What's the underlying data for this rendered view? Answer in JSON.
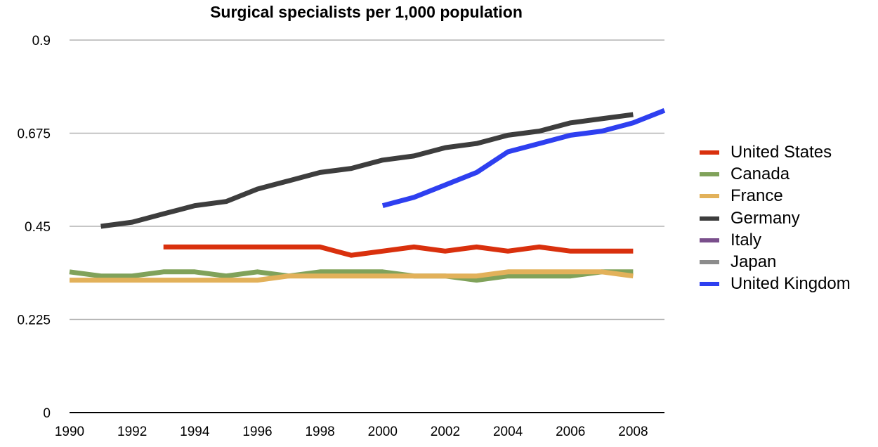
{
  "chart_data": {
    "type": "line",
    "title": "Surgical specialists per 1,000 population",
    "xlabel": "",
    "ylabel": "",
    "xlim": [
      1990,
      2009
    ],
    "ylim": [
      0,
      0.9
    ],
    "x_ticks": [
      "1990",
      "1992",
      "1994",
      "1996",
      "1998",
      "2000",
      "2002",
      "2004",
      "2006",
      "2008"
    ],
    "y_ticks": [
      "0",
      "0.225",
      "0.45",
      "0.675",
      "0.9"
    ],
    "grid": true,
    "legend_position": "right",
    "series": [
      {
        "name": "United States",
        "color": "#d9300d",
        "x": [
          1993,
          1994,
          1995,
          1996,
          1997,
          1998,
          1999,
          2000,
          2001,
          2002,
          2003,
          2004,
          2005,
          2006,
          2007,
          2008
        ],
        "y": [
          0.4,
          0.4,
          0.4,
          0.4,
          0.4,
          0.4,
          0.38,
          0.39,
          0.4,
          0.39,
          0.4,
          0.39,
          0.4,
          0.39,
          0.39,
          0.39
        ]
      },
      {
        "name": "Canada",
        "color": "#80a25a",
        "x": [
          1990,
          1991,
          1992,
          1993,
          1994,
          1995,
          1996,
          1997,
          1998,
          1999,
          2000,
          2001,
          2002,
          2003,
          2004,
          2005,
          2006,
          2007,
          2008
        ],
        "y": [
          0.34,
          0.33,
          0.33,
          0.34,
          0.34,
          0.33,
          0.34,
          0.33,
          0.34,
          0.34,
          0.34,
          0.33,
          0.33,
          0.32,
          0.33,
          0.33,
          0.33,
          0.34,
          0.34
        ]
      },
      {
        "name": "France",
        "color": "#e2b15a",
        "x": [
          1990,
          1991,
          1992,
          1993,
          1994,
          1995,
          1996,
          1997,
          1998,
          1999,
          2000,
          2001,
          2002,
          2003,
          2004,
          2005,
          2006,
          2007,
          2008
        ],
        "y": [
          0.32,
          0.32,
          0.32,
          0.32,
          0.32,
          0.32,
          0.32,
          0.33,
          0.33,
          0.33,
          0.33,
          0.33,
          0.33,
          0.33,
          0.34,
          0.34,
          0.34,
          0.34,
          0.33
        ]
      },
      {
        "name": "Germany",
        "color": "#3d3d3d",
        "x": [
          1991,
          1992,
          1993,
          1994,
          1995,
          1996,
          1997,
          1998,
          1999,
          2000,
          2001,
          2002,
          2003,
          2004,
          2005,
          2006,
          2007,
          2008
        ],
        "y": [
          0.45,
          0.46,
          0.48,
          0.5,
          0.51,
          0.54,
          0.56,
          0.58,
          0.59,
          0.61,
          0.62,
          0.64,
          0.65,
          0.67,
          0.68,
          0.7,
          0.71,
          0.72
        ]
      },
      {
        "name": "Italy",
        "color": "#7a4f8c",
        "x": [],
        "y": []
      },
      {
        "name": "Japan",
        "color": "#8c8c8c",
        "x": [],
        "y": []
      },
      {
        "name": "United Kingdom",
        "color": "#2e3ff0",
        "x": [
          2000,
          2001,
          2002,
          2003,
          2004,
          2005,
          2006,
          2007,
          2008,
          2009
        ],
        "y": [
          0.5,
          0.52,
          0.55,
          0.58,
          0.63,
          0.65,
          0.67,
          0.68,
          0.7,
          0.73
        ]
      }
    ]
  }
}
